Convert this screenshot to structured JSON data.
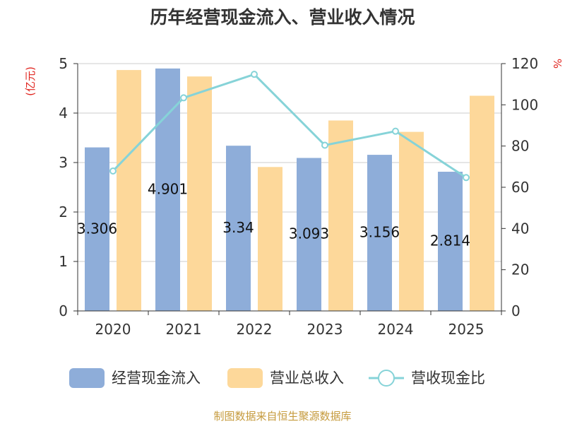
{
  "chart_data": {
    "type": "bar",
    "title": "历年经营现金流入、营业收入情况",
    "categories": [
      "2020",
      "2021",
      "2022",
      "2023",
      "2024",
      "2025"
    ],
    "series": [
      {
        "name": "经营现金流入",
        "type": "bar",
        "axis": "left",
        "color": "#8eadd9",
        "values": [
          3.306,
          4.901,
          3.34,
          3.093,
          3.156,
          2.814
        ],
        "labels": [
          "3.306",
          "4.901",
          "3.34",
          "3.093",
          "3.156",
          "2.814"
        ]
      },
      {
        "name": "营业总收入",
        "type": "bar",
        "axis": "left",
        "color": "#fdd89a",
        "values": [
          4.87,
          4.74,
          2.91,
          3.85,
          3.62,
          4.35
        ]
      },
      {
        "name": "营收现金比",
        "type": "line",
        "axis": "right",
        "color": "#86d3d8",
        "values": [
          67.9,
          103.4,
          114.8,
          80.4,
          87.2,
          64.7
        ]
      }
    ],
    "y_left": {
      "unit": "(亿元)",
      "ylim": [
        0,
        5
      ],
      "ticks": [
        "0",
        "1",
        "2",
        "3",
        "4",
        "5"
      ]
    },
    "y_right": {
      "unit": "%",
      "ylim": [
        0,
        120
      ],
      "ticks": [
        "0",
        "20",
        "40",
        "60",
        "80",
        "100",
        "120"
      ]
    },
    "grid": true,
    "legend": "bottom",
    "source": "制图数据来自恒生聚源数据库"
  }
}
